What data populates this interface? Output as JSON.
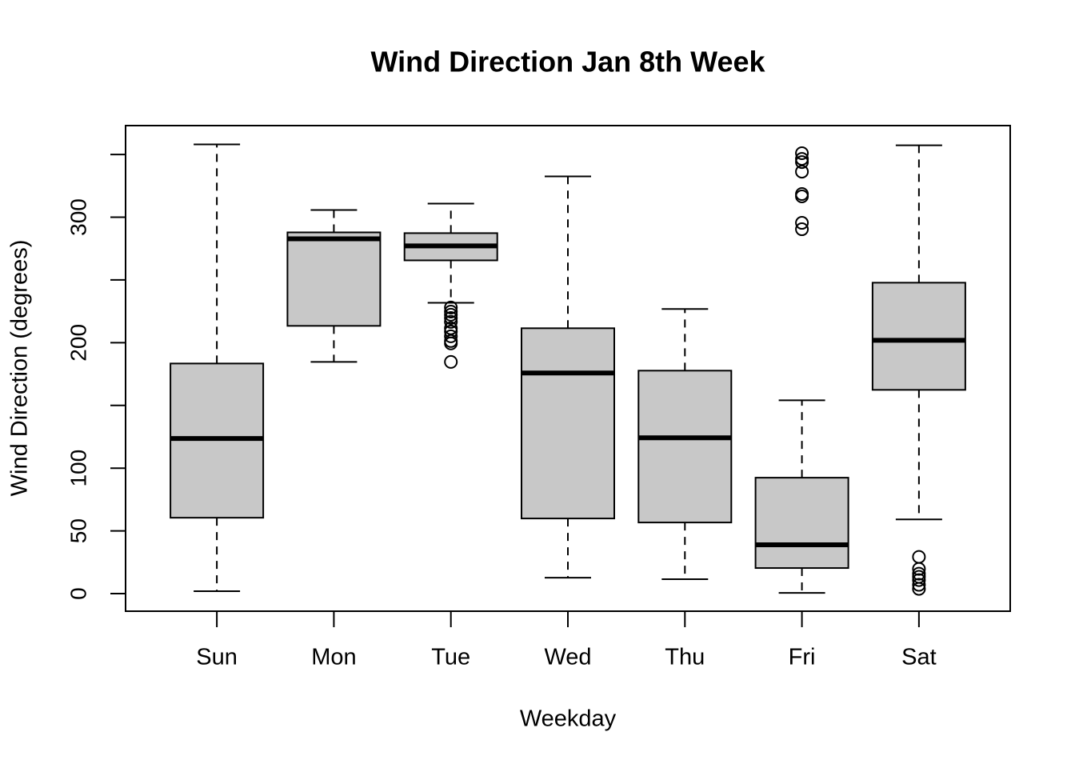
{
  "chart_data": {
    "type": "boxplot",
    "title": "Wind Direction Jan 8th Week",
    "xlabel": "Weekday",
    "ylabel": "Wind Direction (degrees)",
    "categories": [
      "Sun",
      "Mon",
      "Tue",
      "Wed",
      "Thu",
      "Fri",
      "Sat"
    ],
    "boxes": [
      {
        "whisker_low": 1.9,
        "q1": 60.5,
        "median": 123.6,
        "q3": 183.4,
        "whisker_high": 358,
        "outliers": []
      },
      {
        "whisker_low": 184.7,
        "q1": 213.4,
        "median": 282.8,
        "q3": 287.9,
        "whisker_high": 305.7,
        "outliers": []
      },
      {
        "whisker_low": 231.8,
        "q1": 265.6,
        "median": 277.1,
        "q3": 287.3,
        "whisker_high": 310.8,
        "outliers": [
          228,
          224.8,
          222.3,
          219.7,
          216.6,
          211.5,
          208.9,
          205.1,
          201.3,
          199.4,
          184.7
        ]
      },
      {
        "whisker_low": 12.7,
        "q1": 59.9,
        "median": 175.8,
        "q3": 211.5,
        "whisker_high": 332.5,
        "outliers": []
      },
      {
        "whisker_low": 11.5,
        "q1": 56.7,
        "median": 124.2,
        "q3": 177.7,
        "whisker_high": 226.8,
        "outliers": []
      },
      {
        "whisker_low": 0.6,
        "q1": 20.4,
        "median": 38.9,
        "q3": 92.4,
        "whisker_high": 154.1,
        "outliers": [
          351,
          346.5,
          343.9,
          336.3,
          318.5,
          316.6,
          295.5,
          290.4
        ]
      },
      {
        "whisker_low": 59.2,
        "q1": 162.4,
        "median": 201.9,
        "q3": 247.8,
        "whisker_high": 357.3,
        "outliers": [
          29.3,
          19.7,
          15.9,
          13.4,
          10.8,
          7,
          3.8
        ]
      }
    ],
    "color": "#c8c8c8",
    "ylim": [
      -14,
      373
    ],
    "yticks": [
      0,
      50,
      100,
      200,
      300
    ],
    "yticks_unlabeled": [
      150,
      250,
      350
    ]
  }
}
